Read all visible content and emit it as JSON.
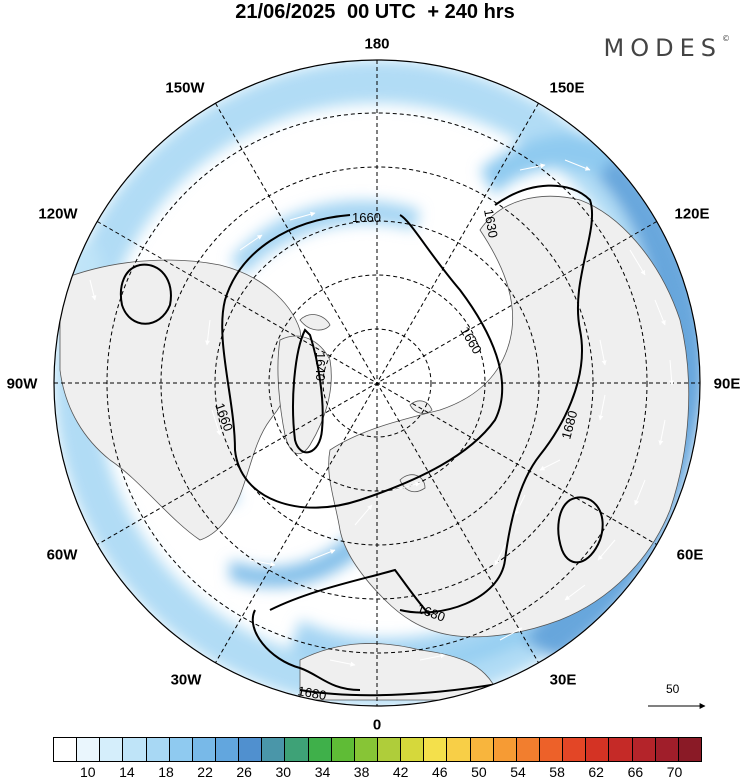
{
  "title": {
    "date": "21/06/2025",
    "time": "00 UTC",
    "lead": "+ 240 hrs"
  },
  "logo": {
    "text": "MODES",
    "mark": "©"
  },
  "longitude_labels": [
    "180",
    "150E",
    "120E",
    "90E",
    "60E",
    "30E",
    "0",
    "30W",
    "60W",
    "90W",
    "120W",
    "150W"
  ],
  "contour_labels": [
    "1660",
    "1630",
    "1660",
    "1640",
    "1660",
    "1680",
    "1680",
    "1680"
  ],
  "vector_key": {
    "value": "50"
  },
  "colorbar": {
    "colors": [
      "#ffffff",
      "#eaf6fd",
      "#d5eefb",
      "#bfe4f8",
      "#a8d8f4",
      "#8fcaf0",
      "#78b9e8",
      "#62a6de",
      "#5090cf",
      "#4a96a9",
      "#3ea277",
      "#3fb04a",
      "#5fbc36",
      "#87c536",
      "#afcd3a",
      "#d6d83b",
      "#f4e04b",
      "#f8cf47",
      "#f8b53d",
      "#f69b34",
      "#f27e2e",
      "#ed6129",
      "#e34626",
      "#d43324",
      "#c52a27",
      "#b4242a",
      "#a01e2a",
      "#8a1a26"
    ],
    "tick_labels": [
      "10",
      "14",
      "18",
      "22",
      "26",
      "30",
      "34",
      "38",
      "42",
      "46",
      "50",
      "54",
      "58",
      "62",
      "66",
      "70"
    ]
  }
}
